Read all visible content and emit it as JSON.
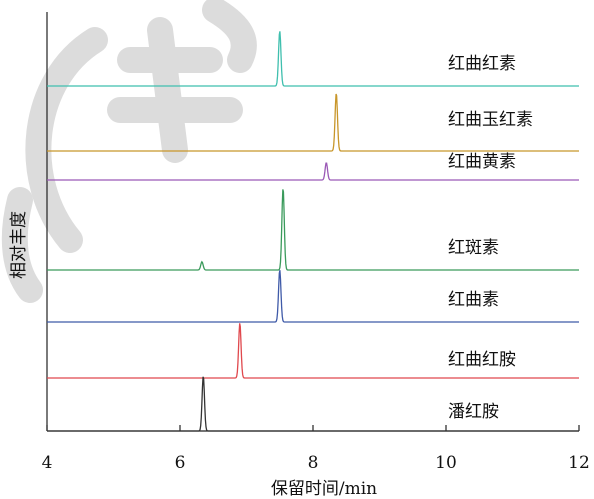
{
  "chart_data": {
    "type": "line",
    "title": "",
    "xlabel": "保留时间/min",
    "ylabel": "相对丰度",
    "xlim": [
      4,
      12
    ],
    "xticks": [
      4,
      6,
      8,
      10,
      12
    ],
    "grid": false,
    "legend": "none",
    "series": [
      {
        "name": "红曲红素",
        "color": "#3fbfae",
        "peaks": [
          {
            "rt": 7.5,
            "height": 0.95
          }
        ]
      },
      {
        "name": "红曲玉红素",
        "color": "#c8962a",
        "peaks": [
          {
            "rt": 8.35,
            "height": 1.0
          }
        ]
      },
      {
        "name": "红曲黄素",
        "color": "#9b59b6",
        "peaks": [
          {
            "rt": 8.2,
            "height": 0.3
          }
        ]
      },
      {
        "name": "红斑素",
        "color": "#3a9a5b",
        "peaks": [
          {
            "rt": 6.33,
            "height": 0.1
          },
          {
            "rt": 7.55,
            "height": 1.0
          }
        ]
      },
      {
        "name": "红曲素",
        "color": "#3f5aa8",
        "peaks": [
          {
            "rt": 7.5,
            "height": 0.9
          }
        ]
      },
      {
        "name": "红曲红胺",
        "color": "#e0484d",
        "peaks": [
          {
            "rt": 6.9,
            "height": 0.95
          }
        ]
      },
      {
        "name": "潘红胺",
        "color": "#333333",
        "peaks": [
          {
            "rt": 6.35,
            "height": 0.95
          }
        ]
      }
    ]
  }
}
